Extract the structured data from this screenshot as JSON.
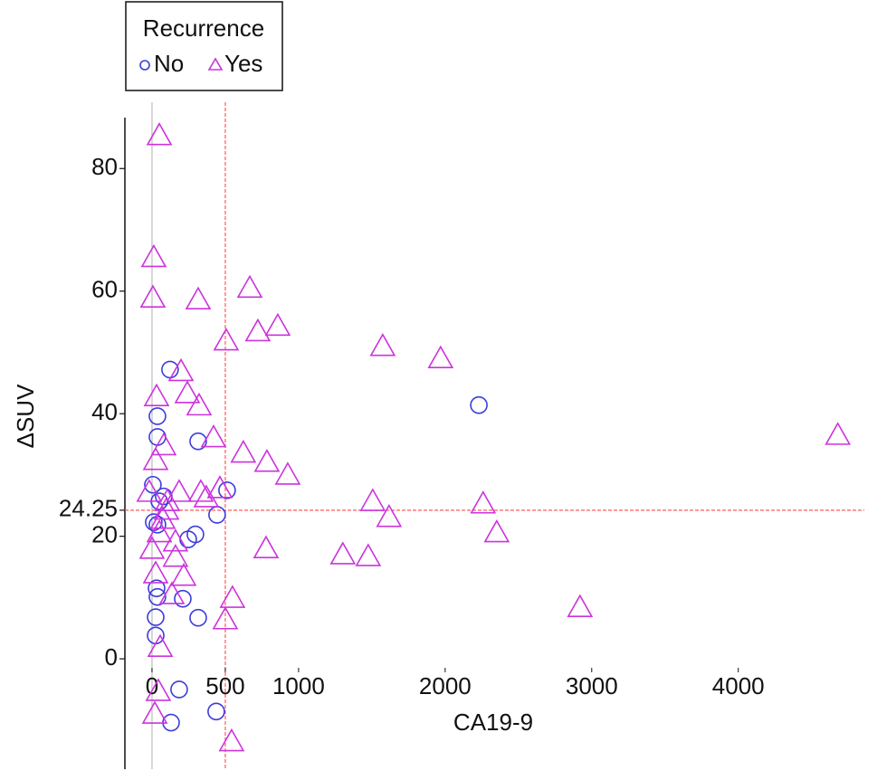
{
  "chart_data": {
    "type": "scatter",
    "x_label": "CA19-9",
    "y_label": "ΔSUV",
    "legend_title": "Recurrence",
    "legend_position": "top-left",
    "xlim": [
      -185,
      4860
    ],
    "ylim": [
      -18,
      92
    ],
    "xticks": [
      0,
      500,
      1000,
      2000,
      3000,
      4000
    ],
    "yticks": [
      0,
      20,
      24.25,
      40,
      60,
      80
    ],
    "reference_lines": [
      {
        "axis": "x",
        "value": 0,
        "color": "#bbbbbb"
      },
      {
        "axis": "x",
        "value": 500,
        "color": "#ff5a5a"
      },
      {
        "axis": "y",
        "value": 24.25,
        "color": "#ff5a5a"
      }
    ],
    "series": [
      {
        "name": "No",
        "marker": "circle",
        "color": "#3c3cdc",
        "x": [
          123,
          37,
          37,
          315,
          2230,
          6,
          80,
          50,
          512,
          444,
          12,
          37,
          296,
          247,
          31,
          37,
          210,
          25,
          315,
          25,
          185,
          130,
          438
        ],
        "values": [
          47.2,
          39.6,
          36.2,
          35.5,
          41.4,
          28.4,
          26.5,
          25.7,
          27.5,
          23.5,
          22.3,
          21.9,
          20.3,
          19.5,
          11.5,
          10.1,
          9.8,
          6.8,
          6.7,
          3.8,
          -5.0,
          -10.4,
          -8.6
        ]
      },
      {
        "name": "Yes",
        "marker": "triangle",
        "color": "#cc33dd",
        "x": [
          50,
          12,
          6,
          315,
          667,
          722,
          858,
          506,
          1574,
          1969,
          4679,
          198,
          31,
          241,
          321,
          420,
          80,
          25,
          623,
          784,
          926,
          -19,
          185,
          333,
          463,
          370,
          1506,
          2259,
          1617,
          2352,
          99,
          50,
          0,
          160,
          778,
          1302,
          1475,
          160,
          25,
          216,
          136,
          549,
          500,
          2920,
          56,
          43,
          19,
          543,
          74,
          105
        ],
        "values": [
          85.4,
          65.5,
          58.9,
          58.6,
          60.5,
          53.4,
          54.3,
          51.9,
          51.0,
          49.0,
          36.5,
          46.9,
          42.8,
          43.3,
          41.3,
          36.1,
          34.8,
          32.4,
          33.6,
          32.1,
          30.0,
          27.2,
          27.2,
          27.2,
          27.8,
          26.3,
          25.7,
          25.3,
          23.1,
          20.6,
          24.3,
          20.6,
          17.9,
          19.1,
          18.0,
          17.0,
          16.7,
          16.6,
          13.9,
          13.5,
          10.5,
          9.9,
          6.4,
          8.4,
          1.9,
          -5.3,
          -9.0,
          -13.5,
          22.8,
          25.7
        ]
      }
    ]
  }
}
